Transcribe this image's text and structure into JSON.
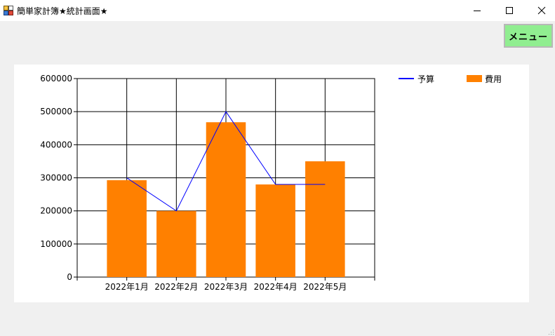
{
  "window": {
    "title": "簡単家計簿★統計画面★",
    "icon": "app-icon",
    "controls": [
      "minimize-icon",
      "maximize-icon",
      "close-icon"
    ]
  },
  "toolbar": {
    "menu_label": "メニュー",
    "menu_color": "#90ee90"
  },
  "chart_data": {
    "type": "bar",
    "categories": [
      "2022年1月",
      "2022年2月",
      "2022年3月",
      "2022年4月",
      "2022年5月"
    ],
    "series": [
      {
        "name": "予算",
        "kind": "line",
        "color": "#0000ff",
        "values": [
          300000,
          200000,
          500000,
          280000,
          280000
        ]
      },
      {
        "name": "費用",
        "kind": "bar",
        "color": "#ff8000",
        "values": [
          293000,
          200000,
          468000,
          280000,
          350000
        ]
      }
    ],
    "yticks": [
      "0",
      "100000",
      "200000",
      "300000",
      "400000",
      "500000",
      "600000"
    ],
    "ylim": [
      0,
      600000
    ],
    "grid": true,
    "legend": "right"
  }
}
